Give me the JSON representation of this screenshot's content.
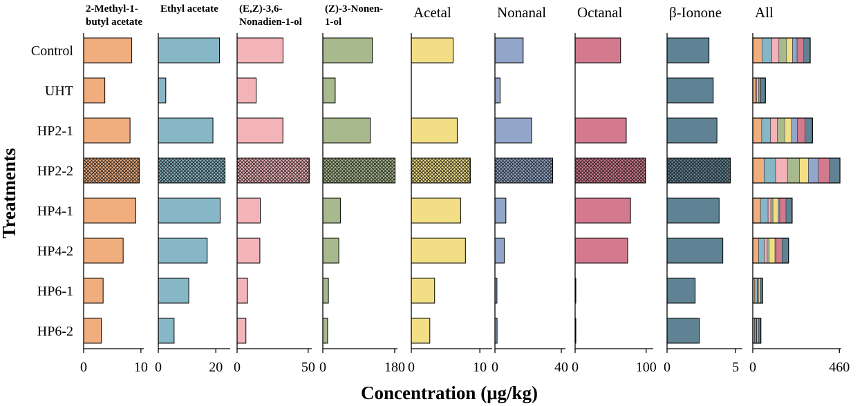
{
  "chart_data": {
    "type": "bar",
    "orientation": "horizontal",
    "xlabel": "Concentration (μg/kg)",
    "ylabel": "Treatments",
    "categories": [
      "Control",
      "UHT",
      "HP2-1",
      "HP2-2",
      "HP4-1",
      "HP4-2",
      "HP6-1",
      "HP6-2"
    ],
    "highlighted_category": "HP2-2",
    "panels": [
      {
        "name": "2-Methyl-1-butyl acetate",
        "title_lines": [
          "2-Methyl-1-",
          "butyl acetate"
        ],
        "title_style": "bold",
        "color": "#F0AD7D",
        "ticks": [
          "0",
          "10"
        ],
        "xlim": [
          0,
          10.5
        ],
        "values": [
          8.4,
          3.7,
          8.1,
          9.7,
          9.1,
          6.9,
          3.4,
          3.1
        ]
      },
      {
        "name": "Ethyl acetate",
        "title_lines": [
          "Ethyl acetate"
        ],
        "title_style": "bold",
        "color": "#87B6C6",
        "ticks": [
          "0",
          "20"
        ],
        "xlim": [
          0,
          25
        ],
        "values": [
          21.3,
          2.6,
          19.0,
          23.2,
          21.5,
          17.0,
          10.6,
          5.5
        ]
      },
      {
        "name": "(E,Z)-3,6-Nonadien-1-ol",
        "title_lines": [
          "(E,Z)-3,6-",
          "Nonadien-1-ol"
        ],
        "title_style": "bold",
        "color": "#F2B3B9",
        "ticks": [
          "0",
          "50"
        ],
        "xlim": [
          0,
          52.5
        ],
        "values": [
          32.3,
          13.4,
          32.2,
          50.7,
          16.3,
          16.0,
          7.3,
          6.2
        ]
      },
      {
        "name": "(Z)-3-Nonen-1-ol",
        "title_lines": [
          "(Z)-3-Nonen-",
          "1-ol"
        ],
        "title_style": "bold",
        "color": "#A8B98D",
        "ticks": [
          "0",
          "180"
        ],
        "xlim": [
          0,
          187
        ],
        "values": [
          124,
          31,
          119,
          181,
          44,
          40,
          14,
          12
        ]
      },
      {
        "name": "Acetal",
        "title_lines": [
          "Acetal"
        ],
        "title_style": "serif",
        "color": "#F2DF85",
        "ticks": [
          "0",
          "10"
        ],
        "xlim": [
          0,
          11.8
        ],
        "values": [
          6.1,
          0,
          6.7,
          8.6,
          7.2,
          7.9,
          3.4,
          2.7
        ]
      },
      {
        "name": "Nonanal",
        "title_lines": [
          "Nonanal"
        ],
        "title_style": "serif",
        "color": "#91A6C9",
        "ticks": [
          "0",
          "40"
        ],
        "xlim": [
          0,
          42.5
        ],
        "values": [
          17.0,
          3.1,
          22.1,
          34.8,
          6.6,
          5.6,
          1.2,
          1.3
        ]
      },
      {
        "name": "Octanal",
        "title_lines": [
          "Octanal"
        ],
        "title_style": "serif",
        "color": "#D47A8E",
        "ticks": [
          "0",
          "100"
        ],
        "xlim": [
          0,
          110
        ],
        "values": [
          64,
          0,
          72,
          99,
          78,
          74,
          1,
          1
        ]
      },
      {
        "name": "β-Ionone",
        "title_lines": [
          "β-Ionone"
        ],
        "title_style": "serif",
        "color": "#5F8394",
        "ticks": [
          "0",
          "5"
        ],
        "xlim": [
          0,
          5.5
        ],
        "values": [
          3.06,
          3.37,
          3.64,
          4.62,
          3.8,
          4.07,
          2.05,
          2.35
        ]
      },
      {
        "name": "All",
        "title_lines": [
          "All"
        ],
        "title_style": "serif",
        "color": "#000000",
        "ticks": [
          "0",
          "460"
        ],
        "xlim": [
          0,
          470
        ],
        "stacked": true,
        "values": [
          305,
          67,
          317,
          463,
          209,
          190,
          52,
          43
        ]
      }
    ]
  }
}
